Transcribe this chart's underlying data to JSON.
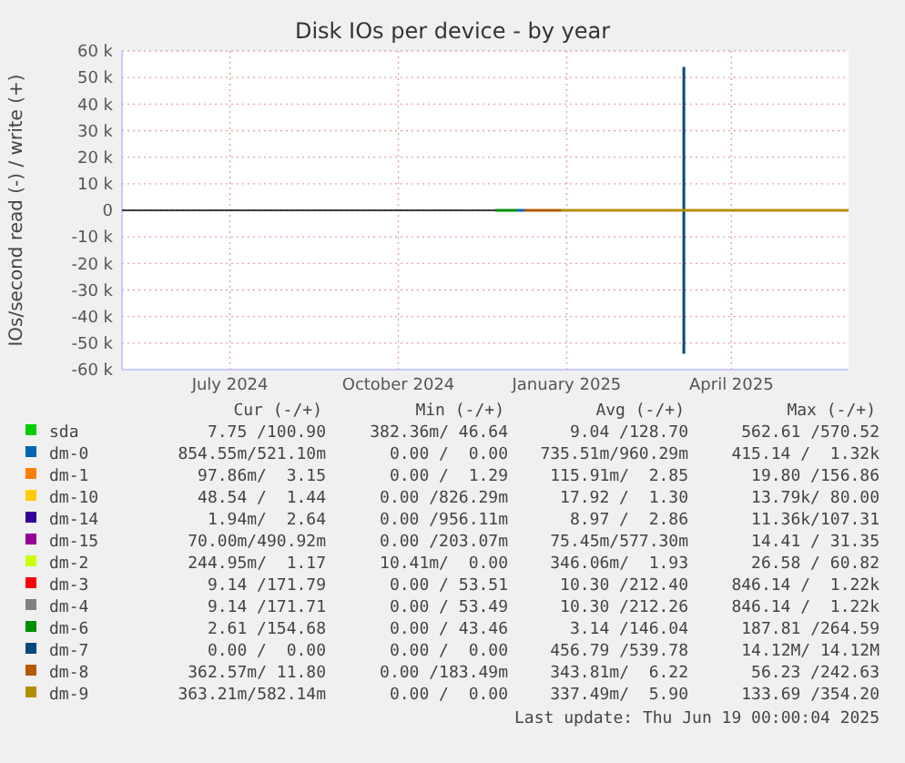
{
  "chart_data": {
    "type": "line",
    "title": "Disk IOs per device - by year",
    "ylabel": "IOs/second read (-) / write (+)",
    "xlim": [
      "2024-05-18",
      "2025-06-19"
    ],
    "xticks": [
      {
        "value": "2024-07-16",
        "label": "July 2024"
      },
      {
        "value": "2024-10-16",
        "label": "October 2024"
      },
      {
        "value": "2025-01-16",
        "label": "January 2025"
      },
      {
        "value": "2025-04-16",
        "label": "April 2025"
      }
    ],
    "ylim": [
      -60000,
      60000
    ],
    "yticks": [
      {
        "value": -60000,
        "label": "-60 k"
      },
      {
        "value": -50000,
        "label": "-50 k"
      },
      {
        "value": -40000,
        "label": "-40 k"
      },
      {
        "value": -30000,
        "label": "-30 k"
      },
      {
        "value": -20000,
        "label": "-20 k"
      },
      {
        "value": -10000,
        "label": "-10 k"
      },
      0,
      {
        "value": 10000,
        "label": "10 k"
      },
      {
        "value": 20000,
        "label": "20 k"
      },
      {
        "value": 30000,
        "label": "30 k"
      },
      {
        "value": 40000,
        "label": "40 k"
      },
      {
        "value": 50000,
        "label": "50 k"
      },
      {
        "value": 60000,
        "label": "60 k"
      }
    ],
    "grid": true,
    "legend": "bottom",
    "marker": "none",
    "line_style": "solid",
    "series": [
      {
        "name": "sda",
        "color": "#00cc00"
      },
      {
        "name": "dm-0",
        "color": "#0066b3",
        "x": [
          "2024-12-20",
          "2024-12-24"
        ],
        "values": [
          0,
          0
        ]
      },
      {
        "name": "dm-1",
        "color": "#ff8000"
      },
      {
        "name": "dm-10",
        "color": "#ffcc00"
      },
      {
        "name": "dm-14",
        "color": "#330099"
      },
      {
        "name": "dm-15",
        "color": "#990099"
      },
      {
        "name": "dm-2",
        "color": "#ccff00"
      },
      {
        "name": "dm-3",
        "color": "#ff0000"
      },
      {
        "name": "dm-4",
        "color": "#808080"
      },
      {
        "name": "dm-6",
        "color": "#008f00",
        "x": [
          "2024-12-08",
          "2024-12-20"
        ],
        "values": [
          0,
          0
        ]
      },
      {
        "name": "dm-7",
        "color": "#00487d",
        "x": [
          "2025-03-21",
          "2025-03-21"
        ],
        "values": [
          -54000,
          54000
        ]
      },
      {
        "name": "dm-8",
        "color": "#b35a00",
        "x": [
          "2024-12-24",
          "2025-01-13"
        ],
        "values": [
          0,
          0
        ]
      },
      {
        "name": "dm-9",
        "color": "#b38f00",
        "x": [
          "2025-01-13",
          "2025-06-19"
        ],
        "values": [
          0,
          0
        ]
      }
    ],
    "annotations": [
      "Cur (-/+)",
      "Min (-/+)",
      "Avg (-/+)",
      "Max (-/+)",
      "7.75 /100.90",
      "382.36m/ 46.64",
      "9.04 /128.70",
      "562.61 /570.52",
      "854.55m/521.10m",
      "0.00 /  0.00",
      "735.51m/960.29m",
      "415.14 /  1.32k",
      "97.86m/  3.15",
      "0.00 /  1.29",
      "115.91m/  2.85",
      "19.80 /156.86",
      "48.54 /  1.44",
      "0.00 /826.29m",
      "17.92 /  1.30",
      "13.79k/ 80.00",
      "1.94m/  2.64",
      "0.00 /956.11m",
      "8.97 /  2.86",
      "11.36k/107.31",
      "70.00m/490.92m",
      "0.00 /203.07m",
      "75.45m/577.30m",
      "14.41 / 31.35",
      "244.95m/  1.17",
      "10.41m/  0.00",
      "346.06m/  1.93",
      "26.58 / 60.82",
      "9.14 /171.79",
      "0.00 / 53.51",
      "10.30 /212.40",
      "846.14 /  1.22k",
      "9.14 /171.71",
      "0.00 / 53.49",
      "10.30 /212.26",
      "846.14 /  1.22k",
      "2.61 /154.68",
      "0.00 / 43.46",
      "3.14 /146.04",
      "187.81 /264.59",
      "0.00 /  0.00",
      "0.00 /  0.00",
      "456.79 /539.78",
      "14.12M/ 14.12M",
      "362.57m/ 11.80",
      "0.00 /183.49m",
      "343.81m/  6.22",
      "56.23 /242.63",
      "363.21m/582.14m",
      "0.00 /  0.00",
      "337.49m/  5.90",
      "133.69 /354.20",
      "Last update: Thu Jun 19 00:00:04 2025"
    ]
  }
}
